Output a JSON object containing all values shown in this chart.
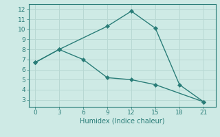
{
  "line1_x": [
    0,
    3,
    9,
    12,
    15,
    18,
    21
  ],
  "line1_y": [
    6.7,
    8.0,
    10.3,
    11.8,
    10.1,
    4.5,
    2.8
  ],
  "line2_x": [
    0,
    3,
    6,
    9,
    12,
    15,
    21
  ],
  "line2_y": [
    6.7,
    8.0,
    7.0,
    5.2,
    5.0,
    4.5,
    2.8
  ],
  "line_color": "#2a7d78",
  "bg_color": "#ceeae5",
  "grid_color": "#b8d8d3",
  "xlabel": "Humidex (Indice chaleur)",
  "xlim": [
    -0.8,
    22.5
  ],
  "ylim": [
    2.3,
    12.5
  ],
  "xticks": [
    0,
    3,
    6,
    9,
    12,
    15,
    18,
    21
  ],
  "yticks": [
    3,
    4,
    5,
    6,
    7,
    8,
    9,
    10,
    11,
    12
  ],
  "marker": "D",
  "markersize": 3,
  "linewidth": 1.0,
  "tick_fontsize": 6.5,
  "xlabel_fontsize": 7.0
}
